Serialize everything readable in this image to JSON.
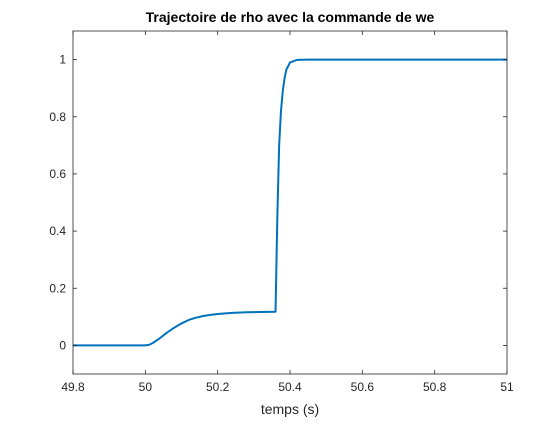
{
  "chart_data": {
    "type": "line",
    "title": "Trajectoire de rho avec la commande de we",
    "xlabel": "temps (s)",
    "ylabel": "",
    "xlim": [
      49.8,
      51
    ],
    "ylim": [
      -0.1,
      1.1
    ],
    "xticks": [
      49.8,
      50,
      50.2,
      50.4,
      50.6,
      50.8,
      51
    ],
    "xtick_labels": [
      "49.8",
      "50",
      "50.2",
      "50.4",
      "50.6",
      "50.8",
      "51"
    ],
    "yticks": [
      0,
      0.2,
      0.4,
      0.6,
      0.8,
      1
    ],
    "ytick_labels": [
      "0",
      "0.2",
      "0.4",
      "0.6",
      "0.8",
      "1"
    ],
    "grid": false,
    "box": true,
    "series": [
      {
        "color": "#0072BD",
        "x": [
          49.8,
          50.0,
          50.01,
          50.02,
          50.04,
          50.06,
          50.08,
          50.1,
          50.12,
          50.14,
          50.16,
          50.18,
          50.2,
          50.24,
          50.28,
          50.32,
          50.36,
          50.365,
          50.37,
          50.375,
          50.38,
          50.385,
          50.39,
          50.4,
          50.42,
          50.45,
          50.5,
          50.6,
          50.8,
          51.0
        ],
        "y": [
          0,
          0,
          0.002,
          0.008,
          0.025,
          0.045,
          0.062,
          0.077,
          0.089,
          0.097,
          0.103,
          0.107,
          0.11,
          0.114,
          0.116,
          0.117,
          0.118,
          0.45,
          0.7,
          0.82,
          0.89,
          0.935,
          0.965,
          0.99,
          0.999,
          1.0,
          1.0,
          1.0,
          1.0,
          1.0
        ]
      }
    ]
  }
}
